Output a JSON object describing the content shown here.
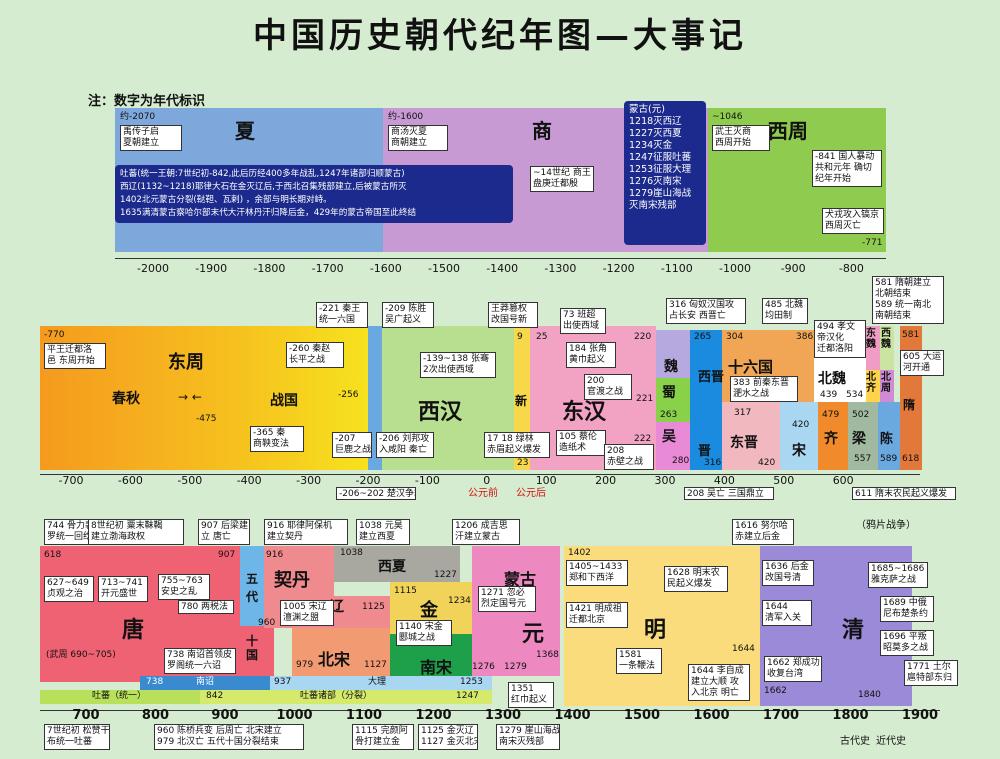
{
  "title": "中国历史朝代纪年图—大事记",
  "note": "注：数字为年代标识",
  "row1": {
    "dynasties": {
      "xia": "夏",
      "shang": "商",
      "xizhou": "西周"
    },
    "labels": {
      "xia_start": "约-2070",
      "xia_event": "禹传子启\n夏朝建立",
      "shang_start": "约-1600",
      "shang_event": "商汤灭夏\n商朝建立",
      "shang_mid": "~14世纪 商王\n盘庚迁都殷",
      "xizhou_start": "~1046",
      "xizhou_event": "武王灭商\n西周开始",
      "xizhou_841": "-841 国人暴动\n共和元年 确切\n纪年开始",
      "xizhou_end_event": "犬戎攻入镐京\n西周灭亡",
      "xizhou_end": "-771"
    },
    "mongol": "蒙古(元)\n1218灭西辽\n1227灭西夏\n1234灭金\n1247征服吐蕃\n1253征服大理\n1276灭南宋\n1279崖山海战\n灭南宋残部",
    "tubo": "吐蕃(统一王朝:7世纪初-842,此后历经400多年战乱,1247年诸部归顺蒙古)\n西辽(1132~1218)耶律大石在金灭辽后,于西北召集残部建立,后被蒙古所灭\n1402北元蒙古分裂(鞑靼、瓦剌) ，余部与明长期对峙。\n1635满清蒙古察哈尔部末代大汗林丹汗归降后金，429年的蒙古帝国至此终结",
    "axis": [
      "-2000",
      "-1900",
      "-1800",
      "-1700",
      "-1600",
      "-1500",
      "-1400",
      "-1300",
      "-1200",
      "-1100",
      "-1000",
      "-900",
      "-800"
    ]
  },
  "row2": {
    "dynasties": {
      "dongzhou": "东周",
      "chunqiu": "春秋",
      "zhanguo": "战国",
      "xihan": "西汉",
      "xin": "新",
      "donghan": "东汉",
      "wei": "魏",
      "shu": "蜀",
      "wu": "吴",
      "xijin": "西晋",
      "jin": "晋",
      "shiliuguo": "十六国",
      "dongjin": "东晋",
      "beiwei": "北魏",
      "song": "宋",
      "qi": "齐",
      "liang": "梁",
      "chen": "陈",
      "sui": "隋",
      "dongwei": "东魏",
      "beiqi": "北齐",
      "xiwei": "西魏",
      "beizhou": "北周"
    },
    "nums": {
      "n770": "-770",
      "n475": "-475",
      "n256": "-256",
      "n221": "-221",
      "n206": "-206",
      "n202": "-202",
      "n9": "9",
      "n23": "23",
      "n25": "25",
      "n220a": "220",
      "n220b": "220",
      "n221b": "221",
      "n222": "222",
      "n263": "263",
      "n265": "265",
      "n280": "280",
      "n304": "304",
      "n316": "316",
      "n317": "317",
      "n386": "386",
      "n420a": "420",
      "n420b": "420",
      "n439": "439",
      "n479": "479",
      "n502": "502",
      "n534": "534",
      "n557": "557",
      "n581": "581",
      "n589": "589",
      "n618": "618"
    },
    "events": {
      "e770": "平王迁都洛\n邑 东周开始",
      "e260": "-260 秦赵\n长平之战",
      "e365": "-365 秦\n商鞅变法",
      "e207": "-207\n巨鹿之战",
      "e206": "-206 刘邦攻\n入咸阳 秦亡",
      "e221": "-221 秦王\n统一六国",
      "e209": "-209 陈胜\n吴广起义",
      "e139": "-139~138 张骞\n2次出使西域",
      "e_wangmang": "王莽篡权\n改国号新",
      "e73": "73 班超\n出使西域",
      "e18": "17 18 绿林\n赤眉起义爆发",
      "e105": "105 蔡伦\n造纸术",
      "e184": "184 张角\n黄巾起义",
      "e200": "200\n官渡之战",
      "e208": "208\n赤壁之战",
      "e316top": "316 匈奴汉国攻\n占长安 西晋亡",
      "e485": "485 北魏\n均田制",
      "e494": "494 孝文\n帝汉化\n迁都洛阳",
      "e383": "383 前秦东晋\n淝水之战",
      "e581": "581 隋朝建立\n北朝结束\n589 统一南北\n南朝结束",
      "e605": "605 大运\n河开通"
    },
    "bottom": {
      "b206": "-206~202 楚汉争霸",
      "b208": "208 吴亡 三国鼎立",
      "b611": "611 隋末农民起义爆发",
      "bc": "公元前",
      "ad": "公元后"
    },
    "axis": [
      "-700",
      "-600",
      "-500",
      "-400",
      "-300",
      "-200",
      "-100",
      "0",
      "100",
      "200",
      "300",
      "400",
      "500",
      "600"
    ]
  },
  "row3": {
    "dynasties": {
      "tang": "唐",
      "wudai": "五\n代",
      "shiguo": "十\n国",
      "qidan": "契丹",
      "liao": "辽",
      "beisong": "北宋",
      "xixia": "西夏",
      "jin": "金",
      "nansong": "南宋",
      "menggu": "蒙古",
      "yuan": "元",
      "ming": "明",
      "qing": "清",
      "nanzhao": "南诏",
      "dali": "大理",
      "tubo": "吐蕃（统一）",
      "tubo2": "吐蕃诸部（分裂）"
    },
    "nums": {
      "n618": "618",
      "n907": "907",
      "n916": "916",
      "n960": "960",
      "n979": "979",
      "n1038": "1038",
      "n1115": "1115",
      "n1125": "1125",
      "n1127": "1127",
      "n1227": "1227",
      "n1234": "1234",
      "n1276": "1276",
      "n1279": "1279",
      "n1368": "1368",
      "n1402": "1402",
      "n1644": "1644",
      "n1662": "1662",
      "n1840": "1840",
      "n738": "738",
      "n842": "842",
      "n937": "937",
      "n1253": "1253",
      "n1247": "1247"
    },
    "events": {
      "e744": "744 骨力裴\n罗统一回纥",
      "e8c": "8世纪初 粟末靺鞨\n建立渤海政权",
      "e907": "907 后梁建\n立 唐亡",
      "e916": "916 耶律阿保机\n建立契丹",
      "e1038": "1038 元昊\n建立西夏",
      "e1206": "1206 成吉思\n汗建立蒙古",
      "e1616": "1616 努尔哈\n赤建立后金",
      "opium": "（鸦片战争）",
      "e627": "627~649\n贞观之治",
      "e713": "713~741\n开元盛世",
      "e755": "755~763\n安史之乱",
      "e780": "780 两税法",
      "e1005": "1005 宋辽\n澶渊之盟",
      "e1140": "1140 宋金\n郾城之战",
      "e1271": "1271 忽必\n烈定国号元",
      "e1405": "1405~1433\n郑和下西洋",
      "e1421": "1421 明成祖\n迁都北京",
      "e1628": "1628 明末农\n民起义爆发",
      "e1636": "1636 后金\n改国号清",
      "e1644q": "1644\n清军入关",
      "e1685": "1685~1686\n雅克萨之战",
      "e1689": "1689 中俄\n尼布楚条约",
      "e1696": "1696 平叛\n昭莫多之战",
      "e1771": "1771 土尔\n扈特部东归",
      "e738": "738 南诏首领皮\n罗阁统一六诏",
      "wuzhou": "(武周 690~705)",
      "e1351": "1351\n红巾起义",
      "e1581": "1581\n一条鞭法",
      "e1644m": "1644 李自成\n建立大顺 攻\n入北京 明亡",
      "e1662": "1662 郑成功\n收复台湾"
    },
    "bottom": {
      "b7c": "7世纪初 松赞干\n布统一吐蕃",
      "b960": "960 陈桥兵变 后周亡 北宋建立\n979 北汉亡 五代十国分裂结束",
      "b1115": "1115 完颜阿\n骨打建立金",
      "b1125": "1125 金灭辽\n1127 金灭北宋",
      "b1279": "1279 崖山海战\n南宋灭残部",
      "gudai": "古代史",
      "jindai": "近代史"
    },
    "axis": [
      "700",
      "800",
      "900",
      "1000",
      "1100",
      "1200",
      "1300",
      "1400",
      "1500",
      "1600",
      "1700",
      "1800",
      "1900"
    ]
  }
}
